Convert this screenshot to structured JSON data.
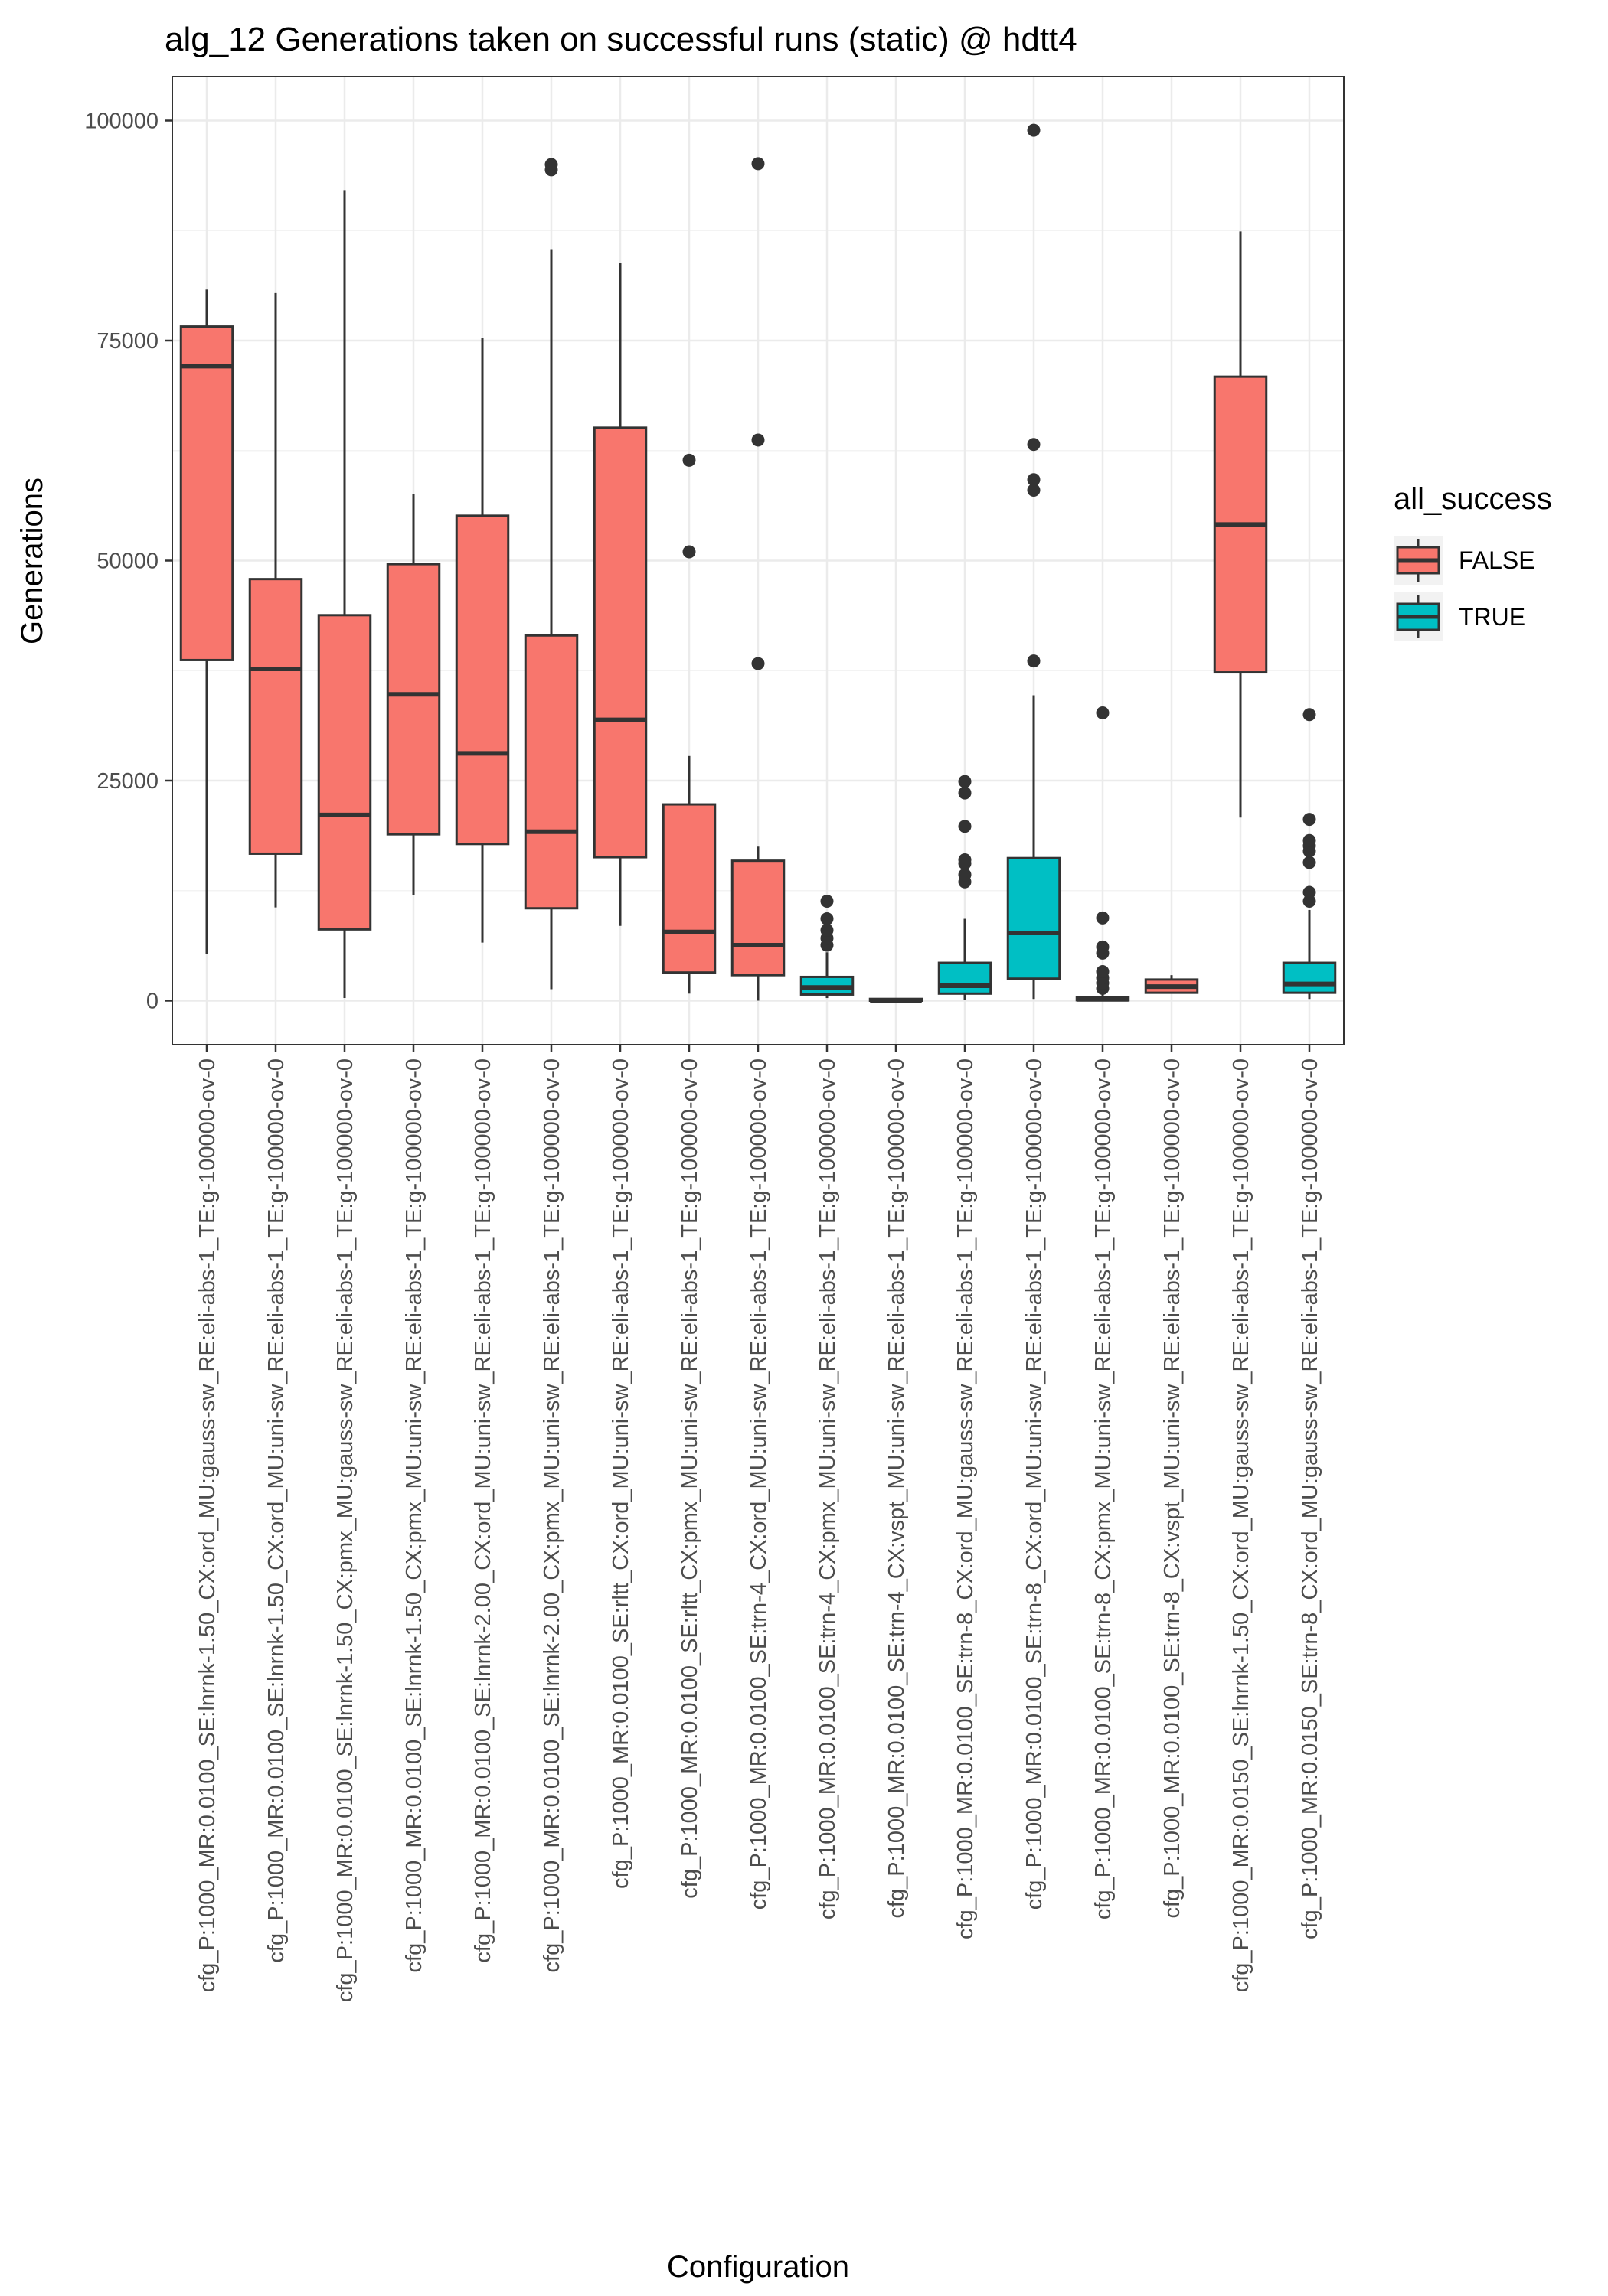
{
  "chart_data": {
    "type": "boxplot",
    "title": "alg_12 Generations taken on successful runs (static) @ hdtt4",
    "xlabel": "Configuration",
    "ylabel": "Generations",
    "ylim": [
      -5000,
      105000
    ],
    "yticks": [
      0,
      25000,
      50000,
      75000,
      100000
    ],
    "ytick_labels": [
      "0",
      "25000",
      "50000",
      "75000",
      "100000"
    ],
    "grid": true,
    "legend": {
      "title": "all_success",
      "placement": "right",
      "entries": [
        {
          "label": "FALSE",
          "color": "#F8766D"
        },
        {
          "label": "TRUE",
          "color": "#00BFC4"
        }
      ]
    },
    "boxes": [
      {
        "category": "cfg_P:1000_MR:0.0100_SE:lnrnk-1.50_CX:ord_MU:gauss-sw_RE:eli-abs-1_TE:g-100000-ov-0",
        "all_success": "FALSE",
        "lower_whisker": 5300,
        "q1": 38700,
        "median": 72100,
        "q3": 76600,
        "upper_whisker": 80800,
        "outliers": []
      },
      {
        "category": "cfg_P:1000_MR:0.0100_SE:lnrnk-1.50_CX:ord_MU:uni-sw_RE:eli-abs-1_TE:g-100000-ov-0",
        "all_success": "FALSE",
        "lower_whisker": 10600,
        "q1": 16700,
        "median": 37700,
        "q3": 47900,
        "upper_whisker": 80400,
        "outliers": []
      },
      {
        "category": "cfg_P:1000_MR:0.0100_SE:lnrnk-1.50_CX:pmx_MU:gauss-sw_RE:eli-abs-1_TE:g-100000-ov-0",
        "all_success": "FALSE",
        "lower_whisker": 300,
        "q1": 8100,
        "median": 21100,
        "q3": 43800,
        "upper_whisker": 92100,
        "outliers": []
      },
      {
        "category": "cfg_P:1000_MR:0.0100_SE:lnrnk-1.50_CX:pmx_MU:uni-sw_RE:eli-abs-1_TE:g-100000-ov-0",
        "all_success": "FALSE",
        "lower_whisker": 12000,
        "q1": 18900,
        "median": 34800,
        "q3": 49600,
        "upper_whisker": 57600,
        "outliers": []
      },
      {
        "category": "cfg_P:1000_MR:0.0100_SE:lnrnk-2.00_CX:ord_MU:uni-sw_RE:eli-abs-1_TE:g-100000-ov-0",
        "all_success": "FALSE",
        "lower_whisker": 6600,
        "q1": 17800,
        "median": 28100,
        "q3": 55100,
        "upper_whisker": 75300,
        "outliers": []
      },
      {
        "category": "cfg_P:1000_MR:0.0100_SE:lnrnk-2.00_CX:pmx_MU:uni-sw_RE:eli-abs-1_TE:g-100000-ov-0",
        "all_success": "FALSE",
        "lower_whisker": 1300,
        "q1": 10500,
        "median": 19200,
        "q3": 41500,
        "upper_whisker": 85300,
        "outliers": [
          94400,
          95000
        ]
      },
      {
        "category": "cfg_P:1000_MR:0.0100_SE:rltt_CX:ord_MU:uni-sw_RE:eli-abs-1_TE:g-100000-ov-0",
        "all_success": "FALSE",
        "lower_whisker": 8500,
        "q1": 16300,
        "median": 31900,
        "q3": 65100,
        "upper_whisker": 83800,
        "outliers": []
      },
      {
        "category": "cfg_P:1000_MR:0.0100_SE:rltt_CX:pmx_MU:uni-sw_RE:eli-abs-1_TE:g-100000-ov-0",
        "all_success": "FALSE",
        "lower_whisker": 800,
        "q1": 3200,
        "median": 7800,
        "q3": 22300,
        "upper_whisker": 27800,
        "outliers": [
          51000,
          61400
        ]
      },
      {
        "category": "cfg_P:1000_MR:0.0100_SE:trn-4_CX:ord_MU:uni-sw_RE:eli-abs-1_TE:g-100000-ov-0",
        "all_success": "FALSE",
        "lower_whisker": 0,
        "q1": 2900,
        "median": 6300,
        "q3": 15900,
        "upper_whisker": 17500,
        "outliers": [
          38300,
          63700,
          95100
        ]
      },
      {
        "category": "cfg_P:1000_MR:0.0100_SE:trn-4_CX:pmx_MU:uni-sw_RE:eli-abs-1_TE:g-100000-ov-0",
        "all_success": "TRUE",
        "lower_whisker": 300,
        "q1": 700,
        "median": 1500,
        "q3": 2700,
        "upper_whisker": 5500,
        "outliers": [
          6300,
          7100,
          8000,
          9300,
          11300
        ]
      },
      {
        "category": "cfg_P:1000_MR:0.0100_SE:trn-4_CX:vspt_MU:uni-sw_RE:eli-abs-1_TE:g-100000-ov-0",
        "all_success": "TRUE",
        "lower_whisker": 0,
        "q1": 0,
        "median": 0,
        "q3": 200,
        "upper_whisker": 300,
        "outliers": []
      },
      {
        "category": "cfg_P:1000_MR:0.0100_SE:trn-8_CX:ord_MU:gauss-sw_RE:eli-abs-1_TE:g-100000-ov-0",
        "all_success": "TRUE",
        "lower_whisker": 100,
        "q1": 800,
        "median": 1700,
        "q3": 4300,
        "upper_whisker": 9300,
        "outliers": [
          13500,
          14300,
          15600,
          16000,
          19800,
          23600,
          24900
        ]
      },
      {
        "category": "cfg_P:1000_MR:0.0100_SE:trn-8_CX:ord_MU:uni-sw_RE:eli-abs-1_TE:g-100000-ov-0",
        "all_success": "TRUE",
        "lower_whisker": 200,
        "q1": 2500,
        "median": 7700,
        "q3": 16200,
        "upper_whisker": 34700,
        "outliers": [
          38600,
          58000,
          59200,
          63200,
          98900
        ]
      },
      {
        "category": "cfg_P:1000_MR:0.0100_SE:trn-8_CX:pmx_MU:uni-sw_RE:eli-abs-1_TE:g-100000-ov-0",
        "all_success": "TRUE",
        "lower_whisker": 0,
        "q1": 50,
        "median": 150,
        "q3": 350,
        "upper_whisker": 800,
        "outliers": [
          1400,
          2000,
          2600,
          3300,
          5400,
          6100,
          9400,
          32700
        ]
      },
      {
        "category": "cfg_P:1000_MR:0.0100_SE:trn-8_CX:vspt_MU:uni-sw_RE:eli-abs-1_TE:g-100000-ov-0",
        "all_success": "FALSE",
        "lower_whisker": 800,
        "q1": 900,
        "median": 1600,
        "q3": 2400,
        "upper_whisker": 2900,
        "outliers": []
      },
      {
        "category": "cfg_P:1000_MR:0.0150_SE:lnrnk-1.50_CX:ord_MU:gauss-sw_RE:eli-abs-1_TE:g-100000-ov-0",
        "all_success": "FALSE",
        "lower_whisker": 20800,
        "q1": 37300,
        "median": 54100,
        "q3": 70900,
        "upper_whisker": 87400,
        "outliers": []
      },
      {
        "category": "cfg_P:1000_MR:0.0150_SE:trn-8_CX:ord_MU:gauss-sw_RE:eli-abs-1_TE:g-100000-ov-0",
        "all_success": "TRUE",
        "lower_whisker": 200,
        "q1": 900,
        "median": 1900,
        "q3": 4300,
        "upper_whisker": 10300,
        "outliers": [
          11300,
          12300,
          15700,
          17000,
          17600,
          18200,
          20600,
          32500
        ]
      }
    ]
  }
}
